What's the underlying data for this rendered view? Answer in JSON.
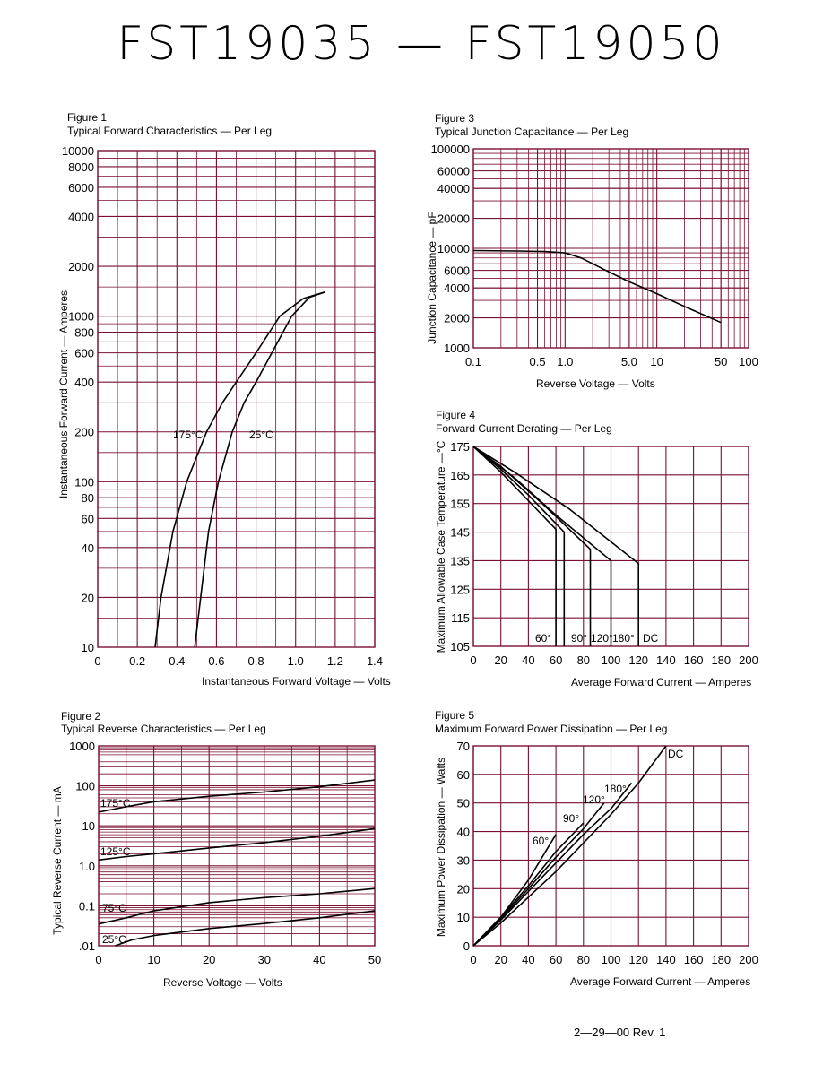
{
  "page": {
    "title": "FST19035  —  FST19050",
    "footer": "2—29—00    Rev. 1"
  },
  "colors": {
    "ink": "#000000",
    "grid": "#7a1030",
    "paper": "#ffffff"
  },
  "chart_data": [
    {
      "id": "fig1",
      "type": "line",
      "caption": "Figure 1",
      "title": "Typical Forward Characteristics — Per Leg",
      "xlabel": "Instantaneous Forward Voltage — Volts",
      "ylabel": "Instantaneous Forward Current — Amperes",
      "xscale": "linear",
      "yscale": "log",
      "xlim": [
        0,
        1.4
      ],
      "ylim": [
        10,
        10000
      ],
      "xticks": [
        "0",
        "0.2",
        "0.4",
        "0.6",
        "0.8",
        "1.0",
        "1.2",
        "1.4"
      ],
      "yticks": [
        "10",
        "20",
        "40",
        "60",
        "80",
        "100",
        "200",
        "400",
        "600",
        "800",
        "1000",
        "2000",
        "4000",
        "6000",
        "8000",
        "10000"
      ],
      "grid": true,
      "series": [
        {
          "name": "175°C",
          "points": [
            [
              0.29,
              10
            ],
            [
              0.32,
              20
            ],
            [
              0.38,
              50
            ],
            [
              0.45,
              100
            ],
            [
              0.55,
              200
            ],
            [
              0.63,
              300
            ],
            [
              0.7,
              400
            ],
            [
              0.8,
              600
            ],
            [
              0.92,
              1000
            ],
            [
              1.04,
              1280
            ],
            [
              1.15,
              1400
            ]
          ]
        },
        {
          "name": "25°C",
          "points": [
            [
              0.49,
              10
            ],
            [
              0.52,
              20
            ],
            [
              0.56,
              50
            ],
            [
              0.61,
              100
            ],
            [
              0.68,
              200
            ],
            [
              0.74,
              300
            ],
            [
              0.8,
              400
            ],
            [
              0.88,
              600
            ],
            [
              0.98,
              1000
            ],
            [
              1.07,
              1300
            ],
            [
              1.15,
              1400
            ]
          ]
        }
      ]
    },
    {
      "id": "fig2",
      "type": "line",
      "caption": "Figure 2",
      "title": "Typical Reverse Characteristics — Per Leg",
      "xlabel": "Reverse Voltage — Volts",
      "ylabel": "Typical Reverse Current — mA",
      "xscale": "linear",
      "yscale": "log",
      "xlim": [
        0,
        50
      ],
      "ylim": [
        0.01,
        1000
      ],
      "xticks": [
        "0",
        "10",
        "20",
        "30",
        "40",
        "50"
      ],
      "yticks": [
        ".01",
        "0.1",
        "1.0",
        "10",
        "100",
        "1000"
      ],
      "grid": true,
      "series": [
        {
          "name": "175°C",
          "points": [
            [
              0,
              22
            ],
            [
              5,
              30
            ],
            [
              10,
              40
            ],
            [
              20,
              55
            ],
            [
              30,
              70
            ],
            [
              40,
              95
            ],
            [
              50,
              140
            ]
          ]
        },
        {
          "name": "125°C",
          "points": [
            [
              0,
              1.4
            ],
            [
              5,
              1.7
            ],
            [
              10,
              2.0
            ],
            [
              20,
              2.8
            ],
            [
              30,
              3.8
            ],
            [
              40,
              5.5
            ],
            [
              50,
              8.5
            ]
          ]
        },
        {
          "name": "75°C",
          "points": [
            [
              0,
              0.035
            ],
            [
              5,
              0.05
            ],
            [
              10,
              0.075
            ],
            [
              20,
              0.12
            ],
            [
              30,
              0.16
            ],
            [
              40,
              0.2
            ],
            [
              50,
              0.27
            ]
          ]
        },
        {
          "name": "25°C",
          "points": [
            [
              3,
              0.01
            ],
            [
              6,
              0.014
            ],
            [
              10,
              0.018
            ],
            [
              15,
              0.022
            ],
            [
              20,
              0.027
            ],
            [
              30,
              0.036
            ],
            [
              40,
              0.05
            ],
            [
              50,
              0.075
            ]
          ]
        }
      ]
    },
    {
      "id": "fig3",
      "type": "line",
      "caption": "Figure 3",
      "title": "Typical Junction Capacitance — Per Leg",
      "xlabel": "Reverse Voltage — Volts",
      "ylabel": "Junction Capacitance — pF",
      "xscale": "log",
      "yscale": "log",
      "xlim": [
        0.1,
        100
      ],
      "ylim": [
        1000,
        100000
      ],
      "xticks": [
        "0.1",
        "0.5",
        "1.0",
        "5.0",
        "10",
        "50",
        "100"
      ],
      "yticks": [
        "1000",
        "2000",
        "4000",
        "6000",
        "10000",
        "20000",
        "40000",
        "60000",
        "100000"
      ],
      "grid": true,
      "series": [
        {
          "name": "",
          "points": [
            [
              0.1,
              9500
            ],
            [
              0.3,
              9400
            ],
            [
              0.6,
              9300
            ],
            [
              1.0,
              9000
            ],
            [
              1.5,
              8000
            ],
            [
              2,
              7000
            ],
            [
              3,
              5800
            ],
            [
              5,
              4600
            ],
            [
              10,
              3500
            ],
            [
              20,
              2600
            ],
            [
              50,
              1800
            ]
          ]
        }
      ]
    },
    {
      "id": "fig4",
      "type": "line",
      "caption": "Figure 4",
      "title": "Forward Current Derating — Per Leg",
      "xlabel": "Average Forward Current — Amperes",
      "ylabel": "Maximum Allowable Case Temperature —°C",
      "xscale": "linear",
      "yscale": "linear",
      "xlim": [
        0,
        200
      ],
      "ylim": [
        105,
        175
      ],
      "xticks": [
        "0",
        "20",
        "40",
        "60",
        "80",
        "100",
        "120",
        "140",
        "160",
        "180",
        "200"
      ],
      "yticks": [
        "105",
        "115",
        "125",
        "135",
        "145",
        "155",
        "165",
        "175"
      ],
      "grid": true,
      "series": [
        {
          "name": "60°",
          "points": [
            [
              0,
              175
            ],
            [
              20,
              166
            ],
            [
              40,
              156
            ],
            [
              60,
              146
            ],
            [
              60,
              105
            ]
          ]
        },
        {
          "name": "90°",
          "points": [
            [
              0,
              175
            ],
            [
              20,
              167
            ],
            [
              40,
              158
            ],
            [
              66,
              145
            ],
            [
              66,
              105
            ]
          ]
        },
        {
          "name": "120°",
          "points": [
            [
              0,
              175
            ],
            [
              20,
              168
            ],
            [
              50,
              155
            ],
            [
              85,
              139
            ],
            [
              85,
              105
            ]
          ]
        },
        {
          "name": "180°",
          "points": [
            [
              0,
              175
            ],
            [
              30,
              164
            ],
            [
              60,
              151
            ],
            [
              100,
              135
            ],
            [
              100,
              105
            ]
          ]
        },
        {
          "name": "DC",
          "points": [
            [
              0,
              175
            ],
            [
              30,
              166
            ],
            [
              70,
              153
            ],
            [
              120,
              134
            ],
            [
              120,
              105
            ]
          ]
        }
      ]
    },
    {
      "id": "fig5",
      "type": "line",
      "caption": "Figure 5",
      "title": "Maximum Forward Power Dissipation — Per Leg",
      "xlabel": "Average Forward Current — Amperes",
      "ylabel": "Maximum Power Dissipation — Watts",
      "xscale": "linear",
      "yscale": "linear",
      "xlim": [
        0,
        200
      ],
      "ylim": [
        0,
        70
      ],
      "xticks": [
        "0",
        "20",
        "40",
        "60",
        "80",
        "100",
        "120",
        "140",
        "160",
        "180",
        "200"
      ],
      "yticks": [
        "0",
        "10",
        "20",
        "30",
        "40",
        "50",
        "60",
        "70"
      ],
      "grid": true,
      "series": [
        {
          "name": "60°",
          "points": [
            [
              0,
              0
            ],
            [
              20,
              10
            ],
            [
              40,
              23
            ],
            [
              60,
              39
            ]
          ]
        },
        {
          "name": "90°",
          "points": [
            [
              0,
              0
            ],
            [
              20,
              10
            ],
            [
              40,
              21
            ],
            [
              60,
              33
            ],
            [
              80,
              43
            ]
          ]
        },
        {
          "name": "120°",
          "points": [
            [
              0,
              0
            ],
            [
              20,
              9.5
            ],
            [
              40,
              20
            ],
            [
              60,
              31
            ],
            [
              80,
              41
            ],
            [
              95,
              50
            ]
          ]
        },
        {
          "name": "180°",
          "points": [
            [
              0,
              0
            ],
            [
              20,
              9
            ],
            [
              40,
              19
            ],
            [
              60,
              29
            ],
            [
              80,
              39
            ],
            [
              100,
              48
            ],
            [
              115,
              57
            ]
          ]
        },
        {
          "name": "DC",
          "points": [
            [
              0,
              0
            ],
            [
              20,
              8
            ],
            [
              40,
              17
            ],
            [
              60,
              26
            ],
            [
              80,
              36
            ],
            [
              100,
              46
            ],
            [
              120,
              57
            ],
            [
              140,
              70
            ]
          ]
        }
      ]
    }
  ]
}
